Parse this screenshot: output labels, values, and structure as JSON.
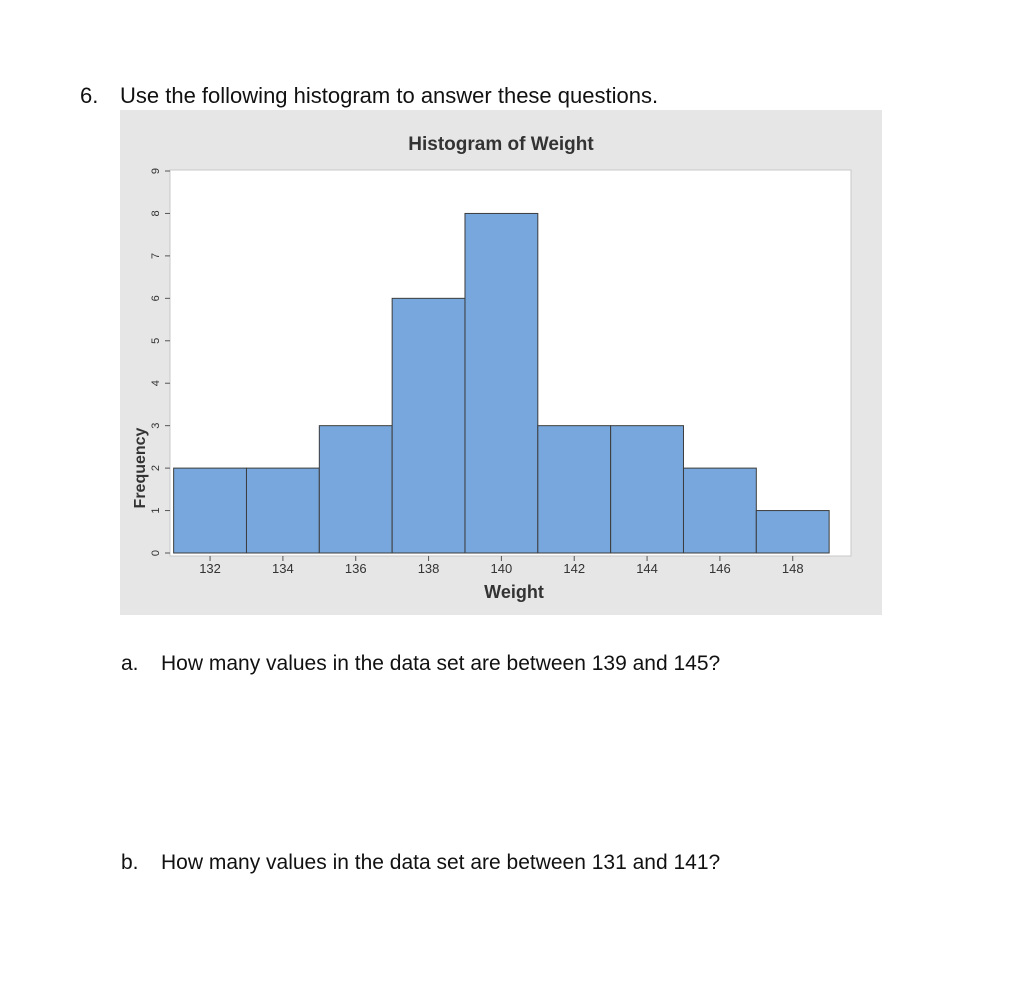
{
  "question": {
    "number": "6.",
    "text": "Use the following histogram to answer these questions."
  },
  "chart_data": {
    "type": "bar",
    "title": "Histogram of Weight",
    "xlabel": "Weight",
    "ylabel": "Frequency",
    "bin_width": 2,
    "bins": [
      {
        "from": 131,
        "to": 133,
        "count": 2
      },
      {
        "from": 133,
        "to": 135,
        "count": 2
      },
      {
        "from": 135,
        "to": 137,
        "count": 3
      },
      {
        "from": 137,
        "to": 139,
        "count": 6
      },
      {
        "from": 139,
        "to": 141,
        "count": 8
      },
      {
        "from": 141,
        "to": 143,
        "count": 3
      },
      {
        "from": 143,
        "to": 145,
        "count": 3
      },
      {
        "from": 145,
        "to": 147,
        "count": 2
      },
      {
        "from": 147,
        "to": 149,
        "count": 1
      }
    ],
    "x_ticks": [
      132,
      134,
      136,
      138,
      140,
      142,
      144,
      146,
      148
    ],
    "y_ticks": [
      0,
      1,
      2,
      3,
      4,
      5,
      6,
      7,
      8,
      9
    ],
    "xlim": [
      130.9,
      149.6
    ],
    "ylim": [
      0,
      9
    ],
    "grid": false,
    "colors": {
      "bar": "#77a7dc",
      "bar_edge": "#3c3c3c",
      "panel_bg": "#e6e6e6",
      "plot_bg": "#ffffff"
    }
  },
  "sub_questions": [
    {
      "letter": "a.",
      "text": "How many values in the data set are between 139 and 145?"
    },
    {
      "letter": "b.",
      "text": "How many values in the data set are between 131 and 141?"
    }
  ]
}
